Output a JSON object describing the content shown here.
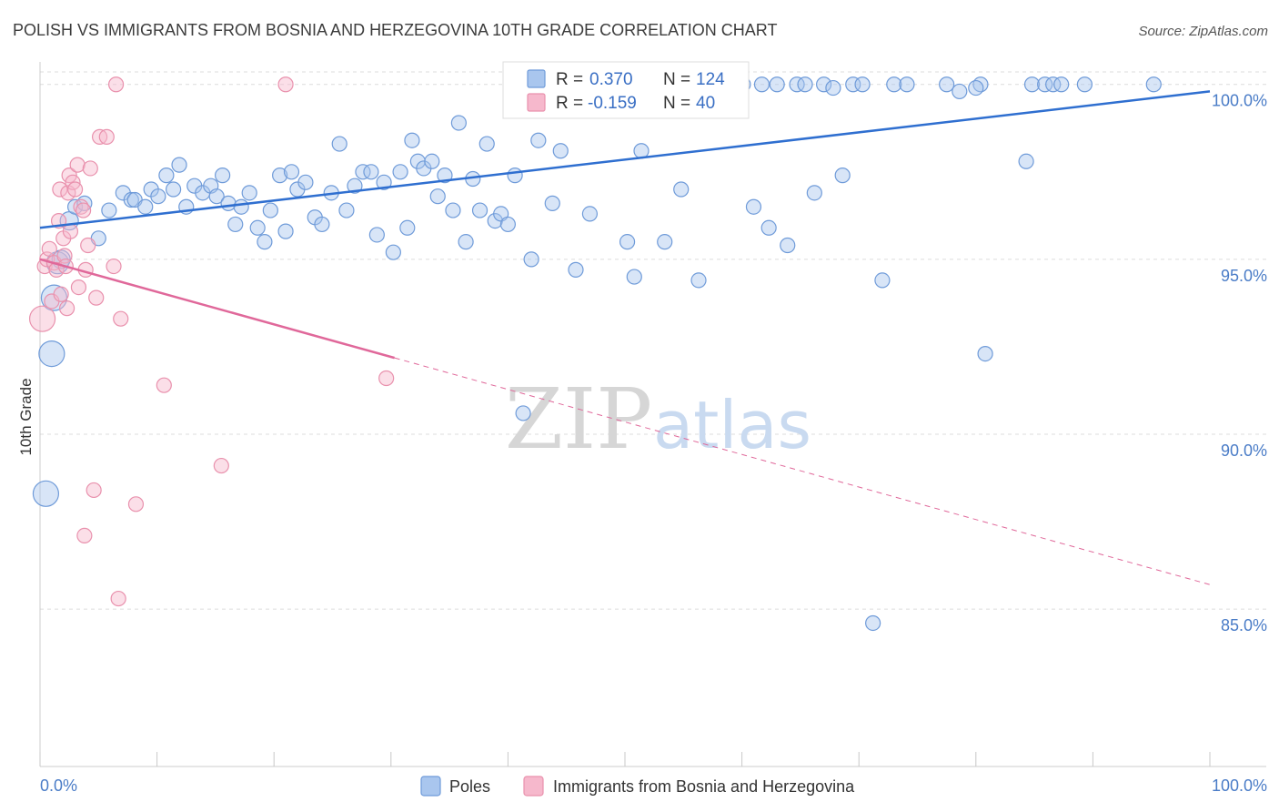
{
  "header": {
    "title": "POLISH VS IMMIGRANTS FROM BOSNIA AND HERZEGOVINA 10TH GRADE CORRELATION CHART",
    "source": "Source: ZipAtlas.com"
  },
  "watermark": {
    "zip": "ZIP",
    "atlas": "atlas"
  },
  "legend": {
    "poles": {
      "r_label": "R =",
      "r_value": "0.370",
      "n_label": "N =",
      "n_value": "124"
    },
    "bosnia": {
      "r_label": "R =",
      "r_value": "-0.159",
      "n_label": "N =",
      "n_value": "40"
    }
  },
  "bottom_legend": {
    "poles": "Poles",
    "bosnia": "Immigrants from Bosnia and Herzegovina"
  },
  "colors": {
    "poles_fill": "#a9c6ee",
    "poles_stroke": "#6f9bd9",
    "poles_line": "#2f6fd0",
    "bosnia_fill": "#f6b8cc",
    "bosnia_stroke": "#e991ad",
    "bosnia_line": "#e0689a",
    "grid": "#dcdcdc",
    "tick_label": "#4a7cc7"
  },
  "chart_data": {
    "type": "scatter",
    "title": "POLISH VS IMMIGRANTS FROM BOSNIA AND HERZEGOVINA 10TH GRADE CORRELATION CHART",
    "xlabel": "",
    "ylabel": "10th Grade",
    "xlim": [
      0,
      100
    ],
    "ylim": [
      80.5,
      100.8
    ],
    "x_tick_labels": [
      "0.0%",
      "100.0%"
    ],
    "y_ticks": [
      85,
      90,
      95,
      100
    ],
    "y_tick_labels": [
      "85.0%",
      "90.0%",
      "95.0%",
      "100.0%"
    ],
    "grid": true,
    "legend_placement": "top-center",
    "series": [
      {
        "name": "Poles",
        "r": 0.37,
        "n": 124,
        "trend": {
          "x": [
            0,
            100
          ],
          "y": [
            95.9,
            99.8
          ],
          "style": "solid"
        },
        "points": [
          [
            0.5,
            88.3,
            14
          ],
          [
            1.0,
            92.3,
            14
          ],
          [
            1.2,
            93.9,
            14
          ],
          [
            1.5,
            94.9,
            12
          ],
          [
            1.8,
            95.0,
            10
          ],
          [
            2.5,
            96.1,
            10
          ],
          [
            3.0,
            96.5,
            8
          ],
          [
            3.8,
            96.6,
            8
          ],
          [
            5.0,
            95.6,
            8
          ],
          [
            5.9,
            96.4,
            8
          ],
          [
            7.1,
            96.9,
            8
          ],
          [
            7.8,
            96.7,
            8
          ],
          [
            8.1,
            96.7,
            8
          ],
          [
            9.0,
            96.5,
            8
          ],
          [
            9.5,
            97.0,
            8
          ],
          [
            10.1,
            96.8,
            8
          ],
          [
            10.8,
            97.4,
            8
          ],
          [
            11.4,
            97.0,
            8
          ],
          [
            11.9,
            97.7,
            8
          ],
          [
            12.5,
            96.5,
            8
          ],
          [
            13.2,
            97.1,
            8
          ],
          [
            13.9,
            96.9,
            8
          ],
          [
            14.6,
            97.1,
            8
          ],
          [
            15.1,
            96.8,
            8
          ],
          [
            15.6,
            97.4,
            8
          ],
          [
            16.1,
            96.6,
            8
          ],
          [
            16.7,
            96.0,
            8
          ],
          [
            17.2,
            96.5,
            8
          ],
          [
            17.9,
            96.9,
            8
          ],
          [
            18.6,
            95.9,
            8
          ],
          [
            19.2,
            95.5,
            8
          ],
          [
            19.7,
            96.4,
            8
          ],
          [
            20.5,
            97.4,
            8
          ],
          [
            21.0,
            95.8,
            8
          ],
          [
            21.5,
            97.5,
            8
          ],
          [
            22.0,
            97.0,
            8
          ],
          [
            22.7,
            97.2,
            8
          ],
          [
            23.5,
            96.2,
            8
          ],
          [
            24.1,
            96.0,
            8
          ],
          [
            24.9,
            96.9,
            8
          ],
          [
            25.6,
            98.3,
            8
          ],
          [
            26.2,
            96.4,
            8
          ],
          [
            26.9,
            97.1,
            8
          ],
          [
            27.6,
            97.5,
            8
          ],
          [
            28.3,
            97.5,
            8
          ],
          [
            28.8,
            95.7,
            8
          ],
          [
            29.4,
            97.2,
            8
          ],
          [
            30.2,
            95.2,
            8
          ],
          [
            30.8,
            97.5,
            8
          ],
          [
            31.4,
            95.9,
            8
          ],
          [
            31.8,
            98.4,
            8
          ],
          [
            32.3,
            97.8,
            8
          ],
          [
            32.8,
            97.6,
            8
          ],
          [
            33.5,
            97.8,
            8
          ],
          [
            34.0,
            96.8,
            8
          ],
          [
            34.6,
            97.4,
            8
          ],
          [
            35.3,
            96.4,
            8
          ],
          [
            35.8,
            98.9,
            8
          ],
          [
            36.4,
            95.5,
            8
          ],
          [
            37.0,
            97.3,
            8
          ],
          [
            37.6,
            96.4,
            8
          ],
          [
            38.2,
            98.3,
            8
          ],
          [
            38.9,
            96.1,
            8
          ],
          [
            39.4,
            96.3,
            8
          ],
          [
            40.0,
            96.0,
            8
          ],
          [
            40.6,
            97.4,
            8
          ],
          [
            41.3,
            90.6,
            8
          ],
          [
            42.0,
            95.0,
            8
          ],
          [
            42.6,
            98.4,
            8
          ],
          [
            43.2,
            99.4,
            8
          ],
          [
            43.8,
            96.6,
            8
          ],
          [
            44.5,
            98.1,
            8
          ],
          [
            45.1,
            100.0,
            8
          ],
          [
            45.8,
            94.7,
            8
          ],
          [
            46.5,
            100.0,
            8
          ],
          [
            47.0,
            96.3,
            8
          ],
          [
            47.6,
            99.5,
            8
          ],
          [
            48.2,
            100.0,
            8
          ],
          [
            48.9,
            99.8,
            8
          ],
          [
            49.6,
            100.0,
            8
          ],
          [
            50.2,
            95.5,
            8
          ],
          [
            50.8,
            94.5,
            8
          ],
          [
            51.4,
            98.1,
            8
          ],
          [
            52.1,
            100.0,
            8
          ],
          [
            52.8,
            99.9,
            8
          ],
          [
            53.4,
            95.5,
            8
          ],
          [
            54.0,
            100.0,
            8
          ],
          [
            54.8,
            97.0,
            8
          ],
          [
            55.6,
            100.0,
            8
          ],
          [
            56.3,
            94.4,
            8
          ],
          [
            57.1,
            100.0,
            8
          ],
          [
            57.8,
            99.9,
            8
          ],
          [
            58.6,
            100.0,
            8
          ],
          [
            59.4,
            100.0,
            8
          ],
          [
            60.1,
            100.0,
            8
          ],
          [
            61.0,
            96.5,
            8
          ],
          [
            61.7,
            100.0,
            8
          ],
          [
            62.3,
            95.9,
            8
          ],
          [
            63.0,
            100.0,
            8
          ],
          [
            63.9,
            95.4,
            8
          ],
          [
            64.7,
            100.0,
            8
          ],
          [
            65.4,
            100.0,
            8
          ],
          [
            66.2,
            96.9,
            8
          ],
          [
            67.0,
            100.0,
            8
          ],
          [
            67.8,
            99.9,
            8
          ],
          [
            68.6,
            97.4,
            8
          ],
          [
            69.5,
            100.0,
            8
          ],
          [
            70.3,
            100.0,
            8
          ],
          [
            71.2,
            84.6,
            8
          ],
          [
            72.0,
            94.4,
            8
          ],
          [
            73.0,
            100.0,
            8
          ],
          [
            74.1,
            100.0,
            8
          ],
          [
            77.5,
            100.0,
            8
          ],
          [
            80.4,
            100.0,
            8
          ],
          [
            84.8,
            100.0,
            8
          ],
          [
            85.9,
            100.0,
            8
          ],
          [
            86.6,
            100.0,
            8
          ],
          [
            87.3,
            100.0,
            8
          ],
          [
            89.3,
            100.0,
            8
          ],
          [
            80.0,
            99.9,
            8
          ],
          [
            78.6,
            99.8,
            8
          ],
          [
            80.8,
            92.3,
            8
          ],
          [
            84.3,
            97.8,
            8
          ],
          [
            95.2,
            100.0,
            8
          ]
        ]
      },
      {
        "name": "Immigrants from Bosnia and Herzegovina",
        "r": -0.159,
        "n": 40,
        "trend": {
          "x": [
            0,
            100
          ],
          "y": [
            95.0,
            85.7
          ],
          "solid_until_x": 30.3
        },
        "points": [
          [
            0.2,
            93.3,
            14
          ],
          [
            0.4,
            94.8,
            8
          ],
          [
            0.6,
            95.0,
            8
          ],
          [
            0.8,
            95.3,
            8
          ],
          [
            1.0,
            93.8,
            8
          ],
          [
            1.2,
            94.9,
            8
          ],
          [
            1.4,
            94.7,
            8
          ],
          [
            1.6,
            96.1,
            8
          ],
          [
            1.7,
            97.0,
            8
          ],
          [
            1.8,
            94.0,
            8
          ],
          [
            2.0,
            95.6,
            8
          ],
          [
            2.1,
            95.1,
            8
          ],
          [
            2.2,
            94.8,
            8
          ],
          [
            2.3,
            93.6,
            8
          ],
          [
            2.4,
            96.9,
            8
          ],
          [
            2.5,
            97.4,
            8
          ],
          [
            2.6,
            95.8,
            8
          ],
          [
            2.8,
            97.2,
            8
          ],
          [
            3.0,
            97.0,
            8
          ],
          [
            3.2,
            97.7,
            8
          ],
          [
            3.3,
            94.2,
            8
          ],
          [
            3.5,
            96.5,
            8
          ],
          [
            3.7,
            96.4,
            8
          ],
          [
            3.9,
            94.7,
            8
          ],
          [
            4.1,
            95.4,
            8
          ],
          [
            4.3,
            97.6,
            8
          ],
          [
            4.6,
            88.4,
            8
          ],
          [
            4.8,
            93.9,
            8
          ],
          [
            5.1,
            98.5,
            8
          ],
          [
            5.7,
            98.5,
            8
          ],
          [
            3.8,
            87.1,
            8
          ],
          [
            6.3,
            94.8,
            8
          ],
          [
            6.5,
            100.0,
            8
          ],
          [
            6.9,
            93.3,
            8
          ],
          [
            6.7,
            85.3,
            8
          ],
          [
            8.2,
            88.0,
            8
          ],
          [
            10.6,
            91.4,
            8
          ],
          [
            15.5,
            89.1,
            8
          ],
          [
            21.0,
            100.0,
            8
          ],
          [
            29.6,
            91.6,
            8
          ]
        ]
      }
    ]
  }
}
